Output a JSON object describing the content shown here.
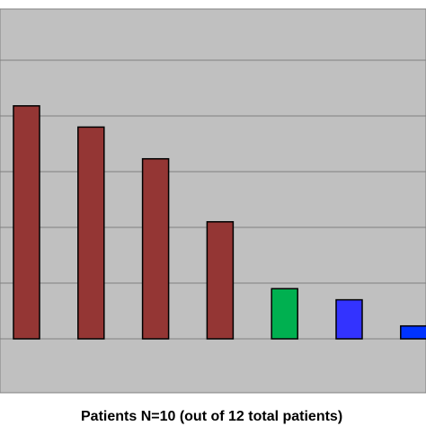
{
  "chart_data": {
    "type": "bar",
    "title": "",
    "xlabel": "Patients N=10 (out of 12 total patients)",
    "ylabel": "",
    "grid": true,
    "legend": "none",
    "ylim": [
      -1,
      5
    ],
    "yticks": [
      0,
      1,
      2,
      3,
      4,
      5
    ],
    "categories": [
      "",
      "",
      "",
      "",
      "",
      "",
      ""
    ],
    "values": [
      4.18,
      3.8,
      3.23,
      2.1,
      0.9,
      0.7,
      0.23
    ],
    "colors": [
      "#943634",
      "#943634",
      "#943634",
      "#943634",
      "#00b050",
      "#3333ff",
      "#0033ff"
    ]
  },
  "colors": {
    "plot_background": "#c0c0c0",
    "gridline": "#808080",
    "bar_outline": "#000000"
  }
}
